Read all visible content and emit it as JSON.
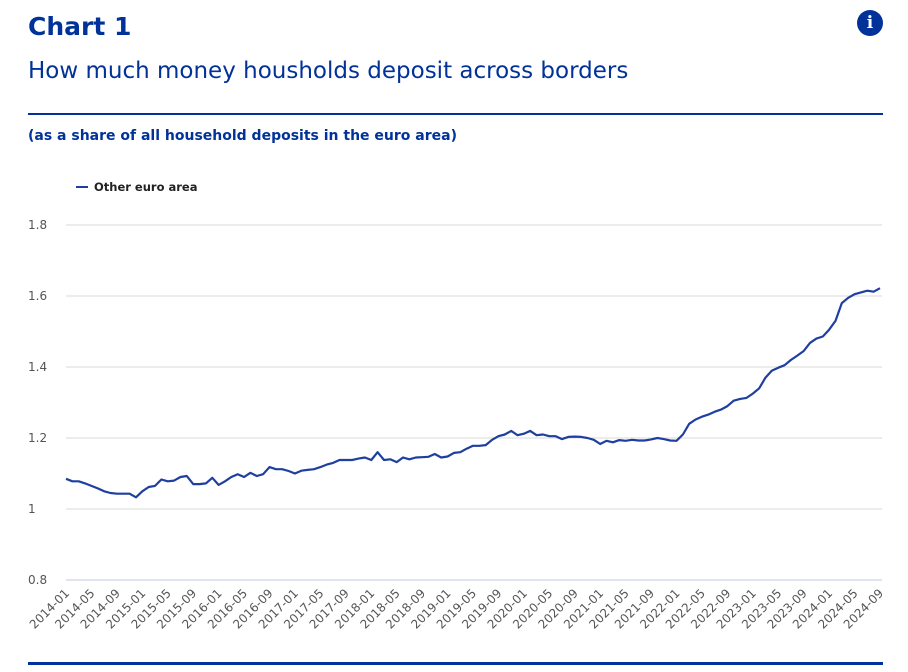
{
  "header": {
    "label": "Chart 1",
    "title": "How much money housholds deposit across borders",
    "subtitle": "(as a share of all household deposits in the euro area)",
    "info_icon": "info-icon"
  },
  "colors": {
    "brand": "#003299",
    "line": "#1f3fa0",
    "grid": "#e6e6e6"
  },
  "chart_data": {
    "type": "line",
    "title": "How much money housholds deposit across borders",
    "xlabel": "",
    "ylabel": "",
    "ylim": [
      0.8,
      1.8
    ],
    "y_ticks": [
      "0.8",
      "1",
      "1.2",
      "1.4",
      "1.6",
      "1.8"
    ],
    "y_tick_values": [
      0.8,
      1.0,
      1.2,
      1.4,
      1.6,
      1.8
    ],
    "grid": true,
    "legend_position": "top-left",
    "x_start": "2014-01",
    "x_end": "2024-09",
    "x_frequency": "monthly",
    "x_tick_labels": [
      "2014-01",
      "2014-05",
      "2014-09",
      "2015-01",
      "2015-05",
      "2015-09",
      "2016-01",
      "2016-05",
      "2016-09",
      "2017-01",
      "2017-05",
      "2017-09",
      "2018-01",
      "2018-05",
      "2018-09",
      "2019-01",
      "2019-05",
      "2019-09",
      "2020-01",
      "2020-05",
      "2020-09",
      "2021-01",
      "2021-05",
      "2021-09",
      "2022-01",
      "2022-05",
      "2022-09",
      "2023-01",
      "2023-05",
      "2023-09",
      "2024-01",
      "2024-05",
      "2024-09"
    ],
    "series": [
      {
        "name": "Other euro area",
        "values": [
          1.085,
          1.078,
          1.078,
          1.072,
          1.065,
          1.058,
          1.05,
          1.045,
          1.043,
          1.043,
          1.043,
          1.033,
          1.05,
          1.062,
          1.065,
          1.083,
          1.078,
          1.08,
          1.09,
          1.093,
          1.07,
          1.07,
          1.072,
          1.088,
          1.068,
          1.078,
          1.09,
          1.098,
          1.09,
          1.102,
          1.093,
          1.098,
          1.118,
          1.112,
          1.112,
          1.107,
          1.1,
          1.108,
          1.11,
          1.112,
          1.118,
          1.125,
          1.13,
          1.138,
          1.138,
          1.138,
          1.142,
          1.145,
          1.138,
          1.16,
          1.138,
          1.14,
          1.132,
          1.145,
          1.14,
          1.145,
          1.146,
          1.147,
          1.155,
          1.145,
          1.148,
          1.158,
          1.16,
          1.17,
          1.178,
          1.178,
          1.18,
          1.195,
          1.205,
          1.21,
          1.22,
          1.208,
          1.212,
          1.22,
          1.208,
          1.21,
          1.205,
          1.205,
          1.197,
          1.203,
          1.204,
          1.203,
          1.2,
          1.195,
          1.183,
          1.192,
          1.188,
          1.194,
          1.192,
          1.195,
          1.193,
          1.193,
          1.196,
          1.2,
          1.197,
          1.193,
          1.192,
          1.21,
          1.24,
          1.252,
          1.26,
          1.266,
          1.274,
          1.28,
          1.29,
          1.305,
          1.31,
          1.313,
          1.325,
          1.34,
          1.37,
          1.39,
          1.398,
          1.405,
          1.42,
          1.432,
          1.445,
          1.468,
          1.48,
          1.486,
          1.505,
          1.53,
          1.58,
          1.595,
          1.605,
          1.61,
          1.615,
          1.612,
          1.622
        ]
      }
    ]
  }
}
